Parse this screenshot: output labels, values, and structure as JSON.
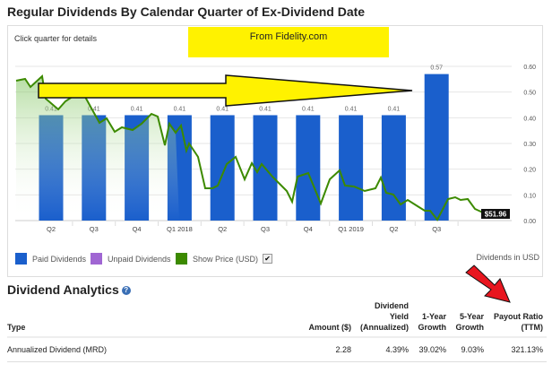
{
  "header": {
    "title": "Regular Dividends By Calendar Quarter of Ex-Dividend Date",
    "hint": "Click quarter for details",
    "annotation": "From Fidelity.com"
  },
  "chart_data": {
    "type": "bar",
    "categories": [
      "Q2",
      "Q3",
      "Q4",
      "Q1 2018",
      "Q2",
      "Q3",
      "Q4",
      "Q1 2019",
      "Q2",
      "Q3"
    ],
    "series": [
      {
        "name": "Paid Dividends",
        "values": [
          0.41,
          0.41,
          0.41,
          0.41,
          0.41,
          0.41,
          0.41,
          0.41,
          0.41,
          0.57
        ],
        "color": "#1a5fcc"
      }
    ],
    "data_labels": [
      "0.41",
      "0.41",
      "0.41",
      "0.41",
      "0.41",
      "0.41",
      "0.41",
      "0.41",
      "0.41",
      "0.57"
    ],
    "ylim": [
      0,
      0.6
    ],
    "yticks": [
      "0.00",
      "0.10",
      "0.20",
      "0.30",
      "0.40",
      "0.50",
      "0.60"
    ],
    "grid": true,
    "price_overlay": {
      "name": "Show Price (USD)",
      "last_label": "$51.96",
      "color": "#3c8a00"
    },
    "legend_placement": "bottom-left",
    "unit_note": "Dividends in USD"
  },
  "legend": {
    "paid": "Paid Dividends",
    "unpaid": "Unpaid Dividends",
    "price": "Show Price (USD)",
    "price_checked": true,
    "colors": {
      "paid": "#1a5fcc",
      "unpaid": "#a066d3",
      "price": "#3c8a00"
    }
  },
  "analytics": {
    "title": "Dividend Analytics",
    "columns": [
      "Type",
      "Amount ($)",
      "Dividend Yield (Annualized)",
      "1-Year Growth",
      "5-Year Growth",
      "Payout Ratio (TTM)"
    ],
    "rows": [
      [
        "Annualized Dividend (MRD)",
        "2.28",
        "4.39%",
        "39.02%",
        "9.03%",
        "321.13%"
      ]
    ]
  }
}
